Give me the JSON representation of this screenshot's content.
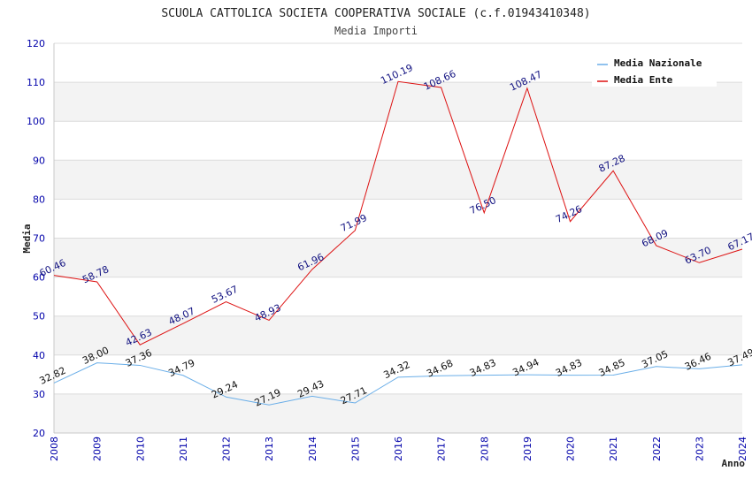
{
  "chart_data": {
    "type": "line",
    "title": "SCUOLA CATTOLICA SOCIETA COOPERATIVA SOCIALE (c.f.01943410348)",
    "subtitle": "Media Importi",
    "xlabel": "Anno",
    "ylabel": "Media",
    "ylim": [
      20,
      120
    ],
    "yticks": [
      "20",
      "30",
      "40",
      "50",
      "60",
      "70",
      "80",
      "90",
      "100",
      "110",
      "120"
    ],
    "categories": [
      "2008",
      "2009",
      "2010",
      "2011",
      "2012",
      "2013",
      "2014",
      "2015",
      "2016",
      "2017",
      "2018",
      "2019",
      "2020",
      "2021",
      "2022",
      "2023",
      "2024"
    ],
    "legend_position": "top-right",
    "series": [
      {
        "name": "Media Nazionale",
        "color": "#6aaee8",
        "values": [
          32.82,
          38.0,
          37.36,
          34.79,
          29.24,
          27.19,
          29.43,
          27.71,
          34.32,
          34.68,
          34.83,
          34.94,
          34.83,
          34.85,
          37.05,
          36.46,
          37.49
        ],
        "labels": [
          "32.82",
          "38.00",
          "37.36",
          "34.79",
          "29.24",
          "27.19",
          "29.43",
          "27.71",
          "34.32",
          "34.68",
          "34.83",
          "34.94",
          "34.83",
          "34.85",
          "37.05",
          "36.46",
          "37.49"
        ]
      },
      {
        "name": "Media Ente",
        "color": "#dd1111",
        "values": [
          60.46,
          58.78,
          42.63,
          48.07,
          53.67,
          48.93,
          61.96,
          71.99,
          110.19,
          108.66,
          76.5,
          108.47,
          74.26,
          87.28,
          68.09,
          63.7,
          67.17
        ],
        "labels": [
          "60.46",
          "58.78",
          "42.63",
          "48.07",
          "53.67",
          "48.93",
          "61.96",
          "71.99",
          "110.19",
          "108.66",
          "76.50",
          "108.47",
          "74.26",
          "87.28",
          "68.09",
          "63.70",
          "67.17"
        ]
      }
    ]
  }
}
